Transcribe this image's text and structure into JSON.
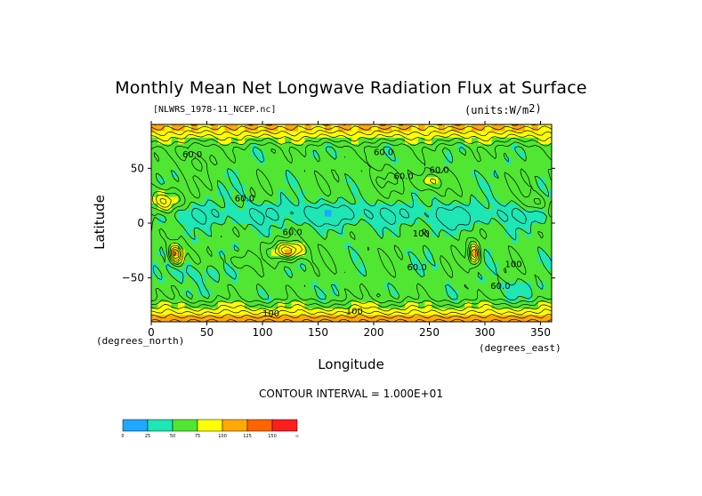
{
  "chart_data": {
    "type": "heatmap",
    "title": "Monthly Mean Net Longwave Radiation Flux at Surface",
    "source_file": "[NLWRS_1978-11_NCEP.nc]",
    "units": "(units:W/m^2)",
    "xlabel": "Longitude",
    "ylabel": "Latitude",
    "x_unit": "(degrees_east)",
    "y_unit": "(degrees_north)",
    "xlim": [
      0,
      360
    ],
    "ylim": [
      -90,
      90
    ],
    "x_ticks": [
      0,
      50,
      100,
      150,
      200,
      250,
      300,
      350
    ],
    "y_ticks": [
      50,
      0,
      -50
    ],
    "contour_interval": "CONTOUR INTERVAL = 1.000E+01",
    "contour_labels": [
      "60.0",
      "60.0",
      "60.0",
      "60.0",
      "60.0",
      "60.0",
      "60.0",
      "60.0",
      "100",
      "100",
      "100",
      "100"
    ],
    "colorbar": {
      "levels": [
        "0",
        "25",
        "50",
        "75",
        "100",
        "125",
        "150",
        "∞"
      ],
      "colors": [
        "#1ea8ff",
        "#1ee6b4",
        "#50e632",
        "#ffff00",
        "#ffaa00",
        "#ff6400",
        "#ff1e1e"
      ]
    },
    "field_colors": {
      "low": "#1ee6b4",
      "mid": "#50e632",
      "high": "#ffff00",
      "higher": "#ffaa00",
      "highest": "#ff1e1e"
    }
  }
}
